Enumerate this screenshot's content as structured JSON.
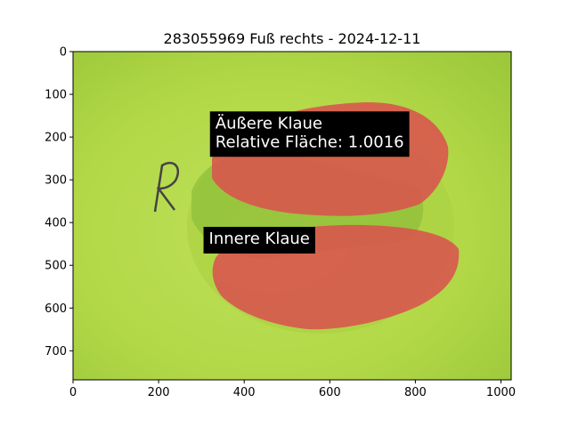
{
  "chart_data": {
    "type": "image",
    "title": "283055969 Fuß rechts - 2024-12-11",
    "xlim": [
      0,
      1024
    ],
    "ylim": [
      768,
      0
    ],
    "x_ticks": [
      0,
      200,
      400,
      600,
      800,
      1000
    ],
    "y_ticks": [
      0,
      100,
      200,
      300,
      400,
      500,
      600,
      700
    ],
    "annotations": [
      {
        "lines": [
          "Äußere Klaue",
          "Relative Fläche: 1.0016"
        ],
        "x": 320,
        "y": 140
      },
      {
        "lines": [
          "Innere Klaue"
        ],
        "x": 305,
        "y": 410
      }
    ],
    "colors": {
      "background_image": "#b5d84a",
      "claw_overlay": "#d9534f",
      "annotation_box": "#000000",
      "annotation_text": "#ffffff"
    }
  }
}
